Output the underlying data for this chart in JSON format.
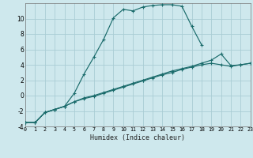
{
  "title": "",
  "xlabel": "Humidex (Indice chaleur)",
  "bg_color": "#cee8ed",
  "grid_color": "#aacdd4",
  "line_color": "#1a6b6b",
  "xlim": [
    0,
    23
  ],
  "ylim": [
    -4,
    12
  ],
  "xticks": [
    0,
    1,
    2,
    3,
    4,
    5,
    6,
    7,
    8,
    9,
    10,
    11,
    12,
    13,
    14,
    15,
    16,
    17,
    18,
    19,
    20,
    21,
    22,
    23
  ],
  "yticks": [
    -4,
    -2,
    0,
    2,
    4,
    6,
    8,
    10
  ],
  "series": [
    [
      0,
      1,
      2,
      3,
      4,
      5,
      6,
      7,
      8,
      9,
      10,
      11,
      12,
      13,
      14,
      15,
      16,
      17,
      18,
      19,
      20,
      21,
      22,
      23
    ],
    [
      -3.5,
      -3.5,
      -2.2,
      -1.8,
      -1.4,
      0.3,
      2.8,
      5.0,
      7.3,
      10.1,
      11.2,
      11.0,
      11.5,
      11.7,
      11.8,
      11.8,
      11.6,
      9.0,
      6.6,
      null,
      null,
      null,
      null,
      null
    ],
    [
      -3.5,
      -3.5,
      -2.2,
      -1.8,
      -1.4,
      -0.8,
      -0.4,
      -0.1,
      0.3,
      0.7,
      1.1,
      1.5,
      1.9,
      2.3,
      2.7,
      3.0,
      3.4,
      3.7,
      4.0,
      4.2,
      4.0,
      3.8,
      4.0,
      4.2
    ],
    [
      -3.5,
      -3.5,
      -2.2,
      -1.8,
      -1.4,
      -0.8,
      -0.3,
      0.0,
      0.4,
      0.8,
      1.2,
      1.6,
      2.0,
      2.4,
      2.8,
      3.2,
      3.5,
      3.8,
      4.2,
      4.6,
      5.4,
      3.9,
      4.0,
      4.2
    ]
  ]
}
